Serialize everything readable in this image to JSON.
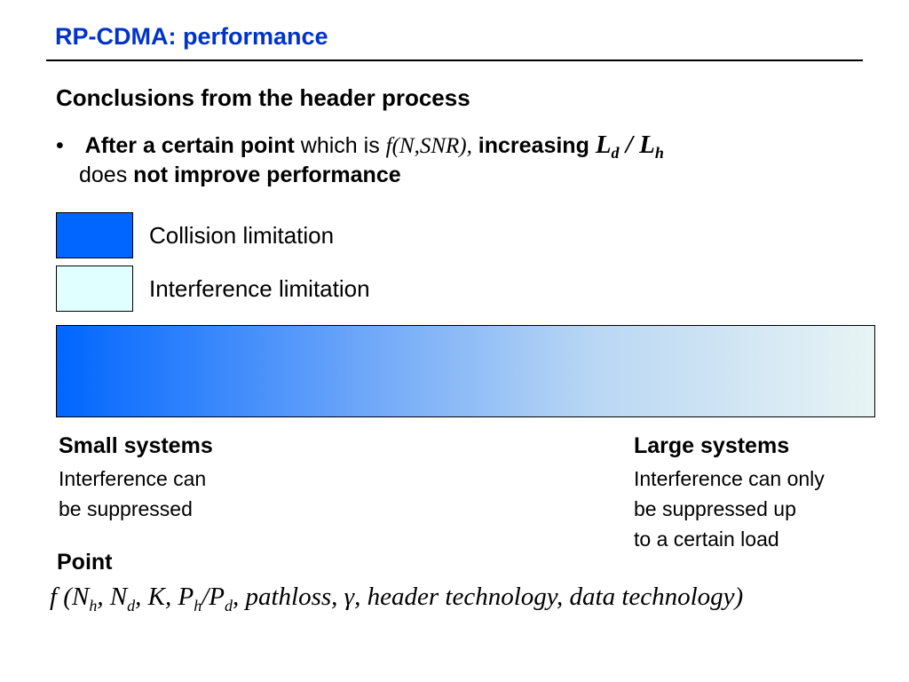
{
  "slide": {
    "title": "RP-CDMA: performance",
    "heading": "Conclusions from the header process",
    "bullet": {
      "marker": "•",
      "part1_bold": "After a certain point",
      "part2": " which is ",
      "part3_italic": "f(N,SNR),",
      "part4_bold": " increasing ",
      "ratio_L1": "L",
      "ratio_sub1": "d",
      "ratio_slash": " / ",
      "ratio_L2": "L",
      "ratio_sub2": "h",
      "line2_part1": "does ",
      "line2_part2_bold": "not improve performance"
    },
    "legend": [
      {
        "label": "Collision limitation",
        "color": "#0066ff"
      },
      {
        "label": "Interference limitation",
        "color": "#e0ffff"
      }
    ],
    "gradient": {
      "from": "#0066ff",
      "to": "#e8f4f4"
    },
    "small_systems": {
      "title": "Small systems",
      "lines": [
        "Interference can",
        "be suppressed"
      ]
    },
    "large_systems": {
      "title": "Large systems",
      "lines": [
        "Interference can only",
        "be suppressed up",
        "to a certain load"
      ]
    },
    "point_label": "Point",
    "formula": {
      "f": "f (N",
      "s1": "h",
      "t2": ", N",
      "s2": "d",
      "t3": ", K, P",
      "s3": "h",
      "t4": "/P",
      "s4": "d",
      "t5": ", pathloss, γ, header technology, data technology)"
    },
    "accent_color": "#0033cc"
  }
}
